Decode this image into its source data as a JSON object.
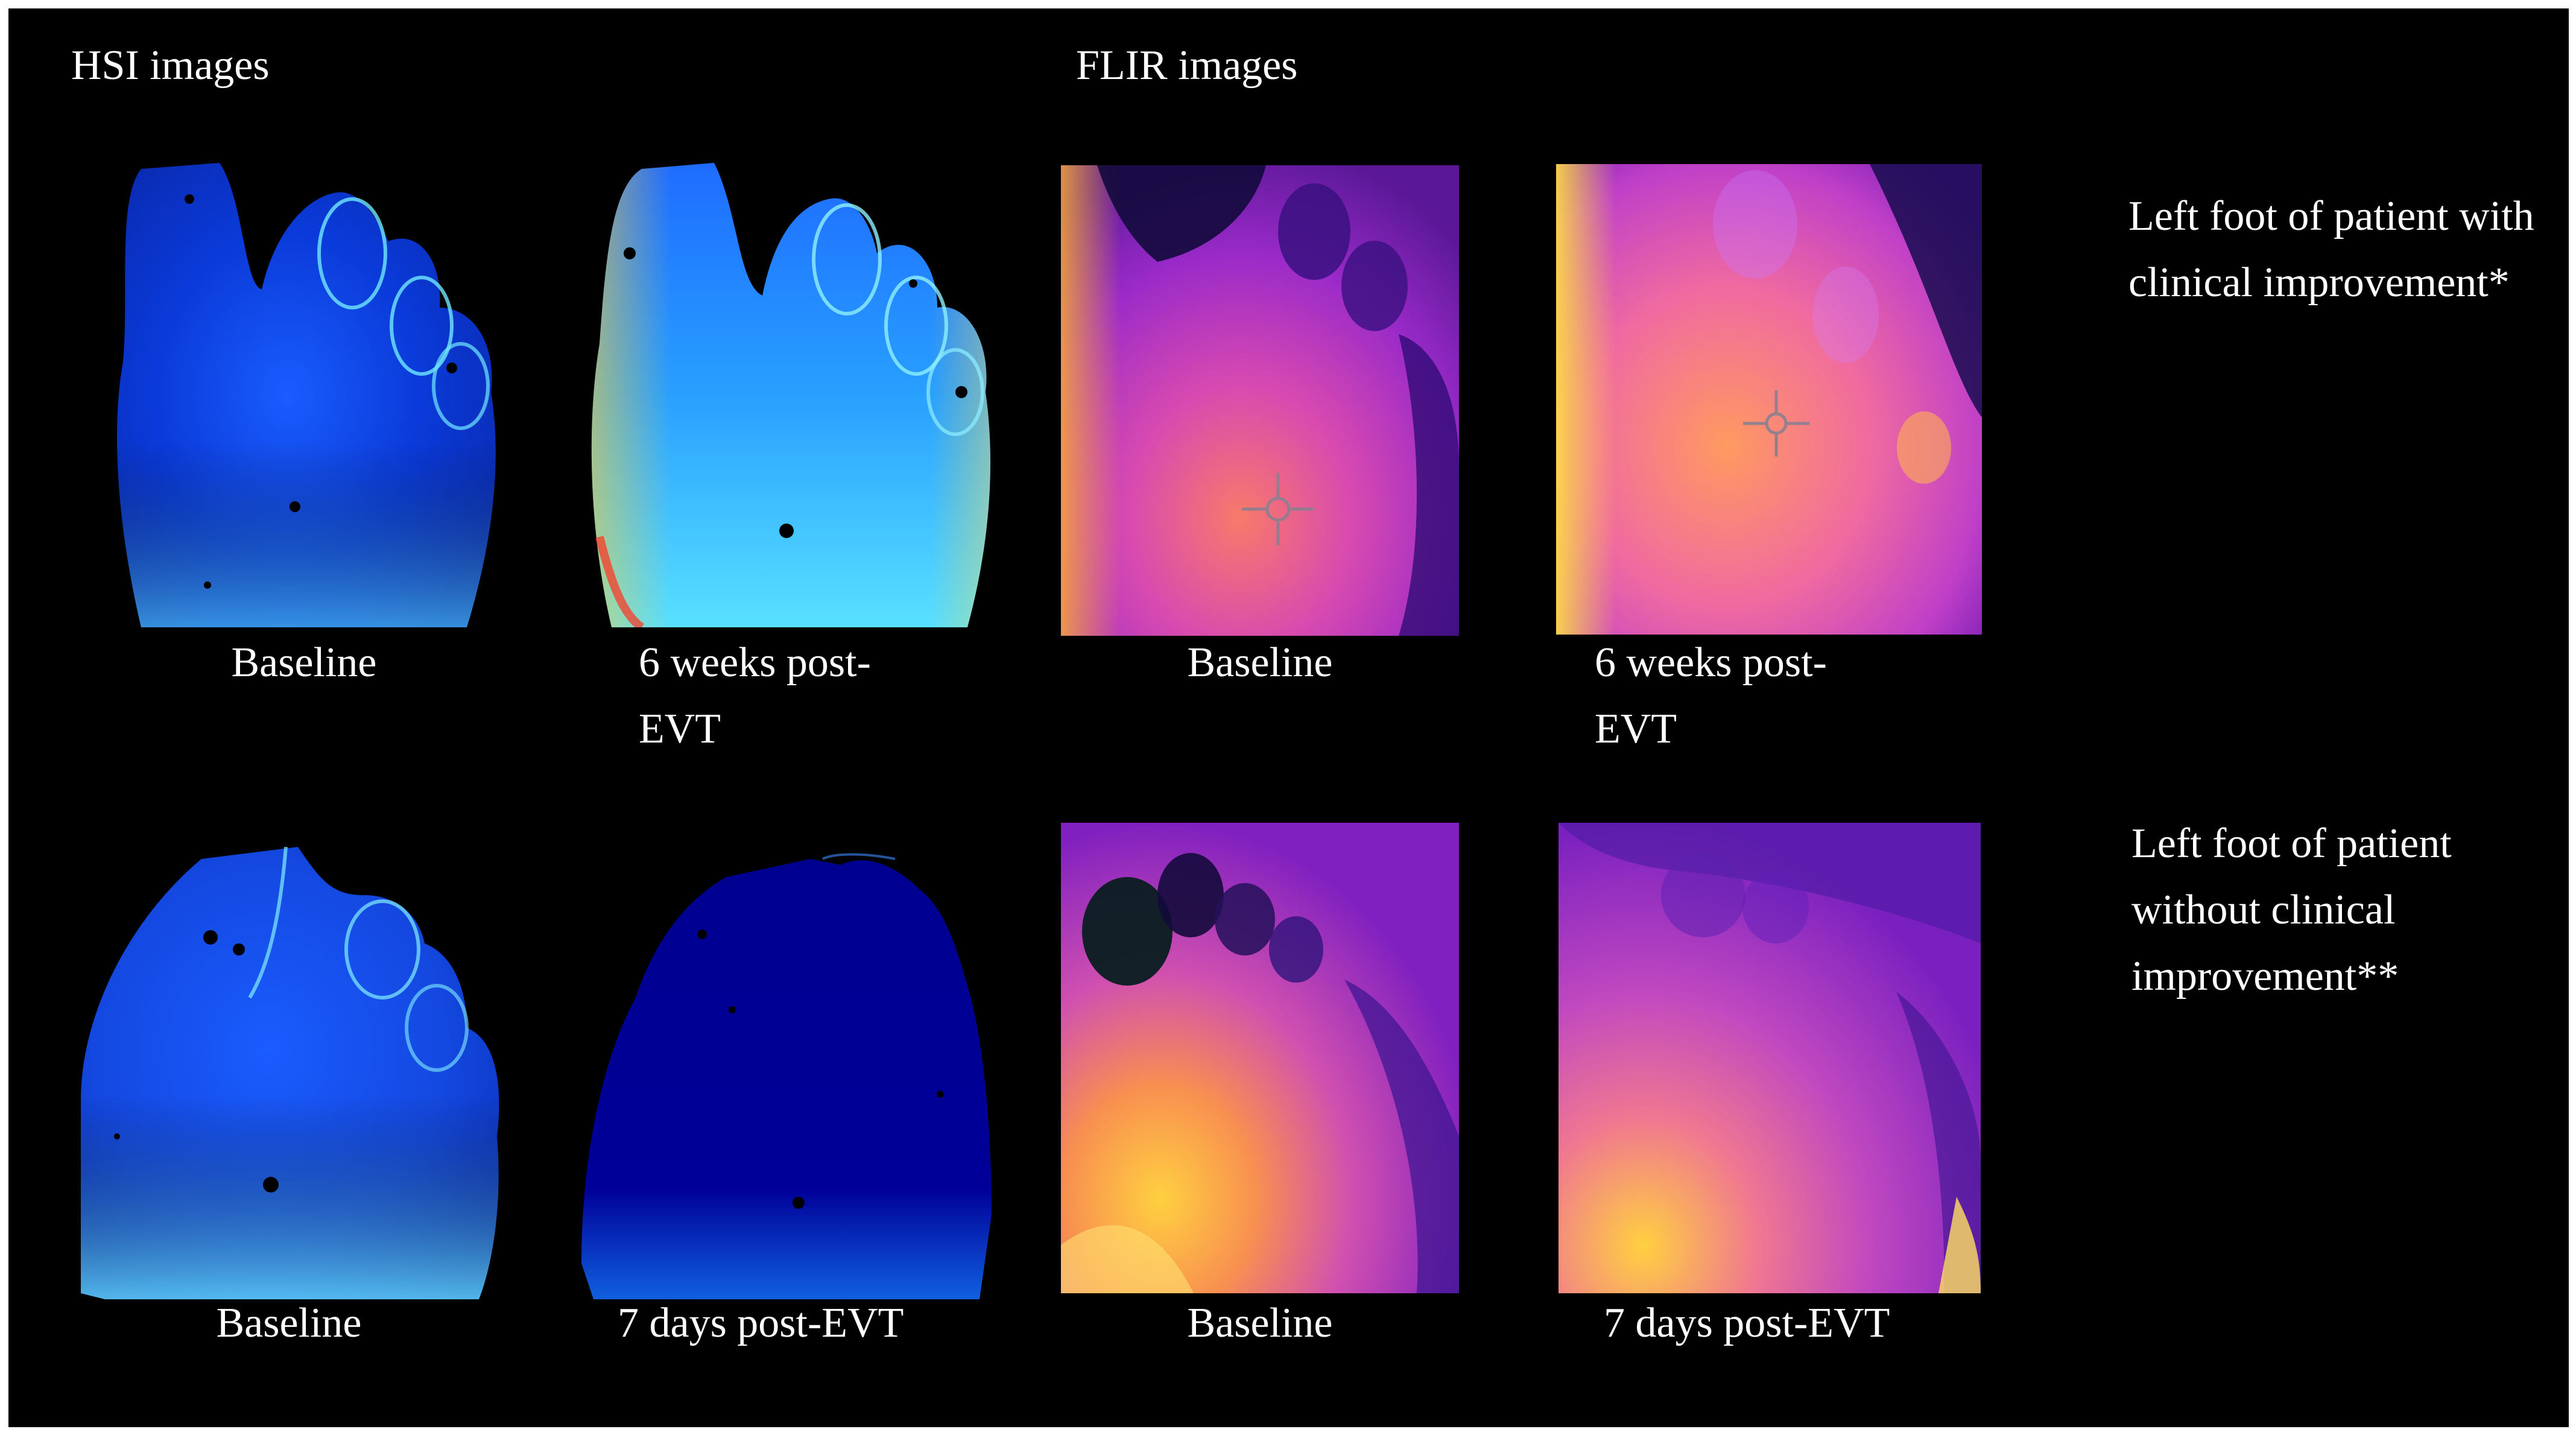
{
  "headers": {
    "hsi": "HSI images",
    "flir": "FLIR images"
  },
  "row1": {
    "side_label": "Left foot of patient with clinical improvement*",
    "captions": {
      "hsi_baseline": "Baseline",
      "hsi_followup": "6 weeks post-EVT",
      "flir_baseline": "Baseline",
      "flir_followup": "6 weeks post-EVT"
    }
  },
  "row2": {
    "side_label": "Left foot of patient without clinical improvement**",
    "captions": {
      "hsi_baseline": "Baseline",
      "hsi_followup": "7 days post-EVT",
      "flir_baseline": "Baseline",
      "flir_followup": "7 days post-EVT"
    }
  },
  "colors": {
    "background": "#000000",
    "text": "#ffffff",
    "hsi_low": "#00008f",
    "hsi_mid": "#1e64ff",
    "hsi_high": "#50dcff",
    "flir_cold": "#120a3c",
    "flir_mid": "#b428d0",
    "flir_hot": "#ffd040"
  }
}
